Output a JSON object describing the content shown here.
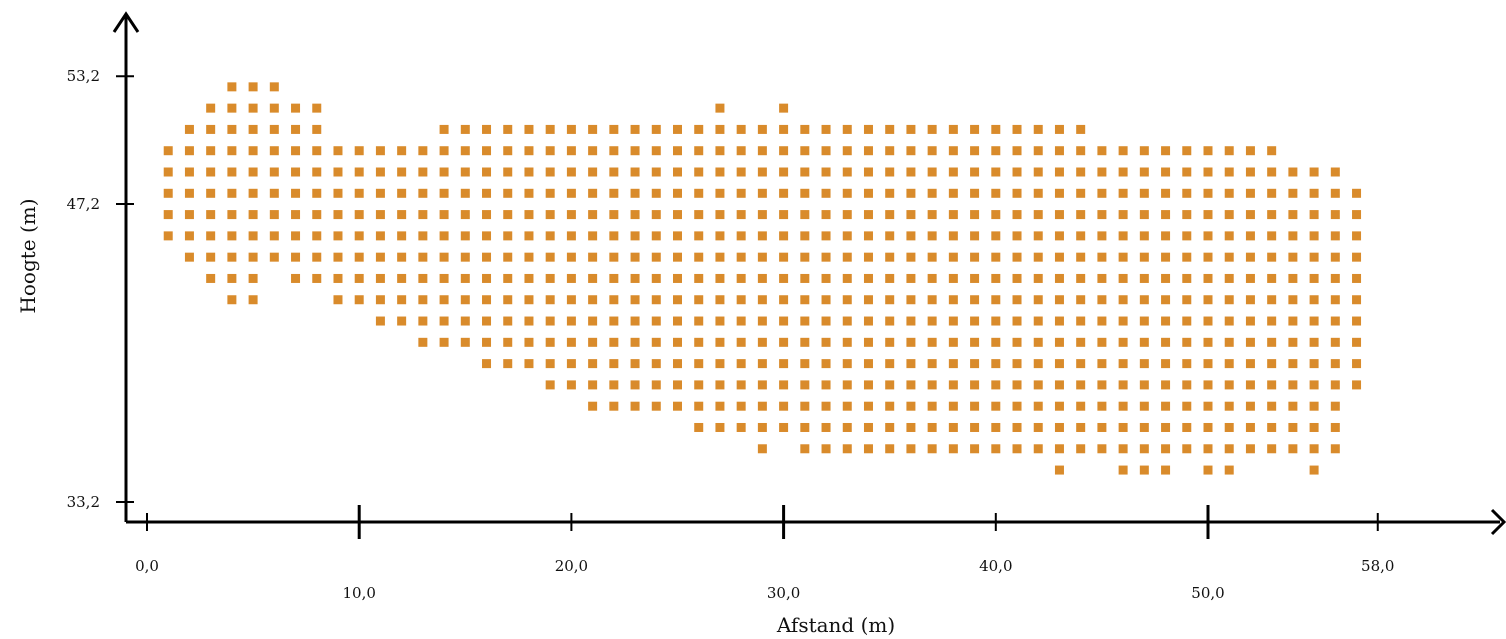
{
  "chart_data": {
    "type": "scatter",
    "xlabel": "Afstand (m)",
    "ylabel": "Hoogte (m)",
    "x_ticks": [
      {
        "value": 0,
        "label": "0,0"
      },
      {
        "value": 10,
        "label": "10,0"
      },
      {
        "value": 20,
        "label": "20,0"
      },
      {
        "value": 30,
        "label": "30,0"
      },
      {
        "value": 40,
        "label": "40,0"
      },
      {
        "value": 50,
        "label": "50,0"
      },
      {
        "value": 58,
        "label": "58,0"
      }
    ],
    "y_ticks": [
      {
        "value": 33.2,
        "label": "33,2"
      },
      {
        "value": 47.2,
        "label": "47,2"
      },
      {
        "value": 53.2,
        "label": "53,2"
      }
    ],
    "xlim": [
      -1,
      64.3
    ],
    "ylim": [
      32.5,
      55.3
    ],
    "grid": false,
    "marker_color": "#d98b2b",
    "x_origin": 1.0,
    "x_step": 1.0,
    "y_origin": 52.7,
    "y_step": -1.0,
    "rows": [
      "...XXX",
      "..XXXXXX..................X..X",
      ".XXXXXXX.....XXXXXXXXXXXXXXXXXXXXXXXXXXXXXXX",
      "XXXXXXXXXXXXXXXXXXXXXXXXXXXXXXXXXXXXXXXXXXXXXXXXXXXXX",
      "XXXXXXXXXXXXXXXXXXXXXXXXXXXXXXXXXXXXXXXXXXXXXXXXXXXXXXXX",
      "XXXXXXXXXXXXXXXXXXXXXXXXXXXXXXXXXXXXXXXXXXXXXXXXXXXXXXXXX",
      "XXXXXXXXXXXXXXXXXXXXXXXXXXXXXXXXXXXXXXXXXXXXXXXXXXXXXXXXX",
      "XXXXXXXXXXXXXXXXXXXXXXXXXXXXXXXXXXXXXXXXXXXXXXXXXXXXXXXXX",
      ".XXXXXXXXXXXXXXXXXXXXXXXXXXXXXXXXXXXXXXXXXXXXXXXXXXXXXXXX",
      "..XXX.XXXXXXXXXXXXXXXXXXXXXXXXXXXXXXXXXXXXXXXXXXXXXXXXXXX",
      "...XX...XXXXXXXXXXXXXXXXXXXXXXXXXXXXXXXXXXXXXXXXXXXXXXXXX",
      "..........XXXXXXXXXXXXXXXXXXXXXXXXXXXXXXXXXXXXXXXXXXXXXXX",
      "............XXXXXXXXXXXXXXXXXXXXXXXXXXXXXXXXXXXXXXXXXXXXX",
      "...............XXXXXXXXXXXXXXXXXXXXXXXXXXXXXXXXXXXXXXXXXX",
      "..................XXXXXXXXXXXXXXXXXXXXXXXXXXXXXXXXXXXXXXX",
      "....................XXXXXXXXXXXXXXXXXXXXXXXXXXXXXXXXXXXX",
      ".........................XXXXXXXXXXXXXXXXXXXXXXXXXXXXXXX",
      "............................X.XXXXXXXXXXXXXXXXXXXXXXXXXX",
      "..........................................X..XXX.XX...X"
    ]
  }
}
